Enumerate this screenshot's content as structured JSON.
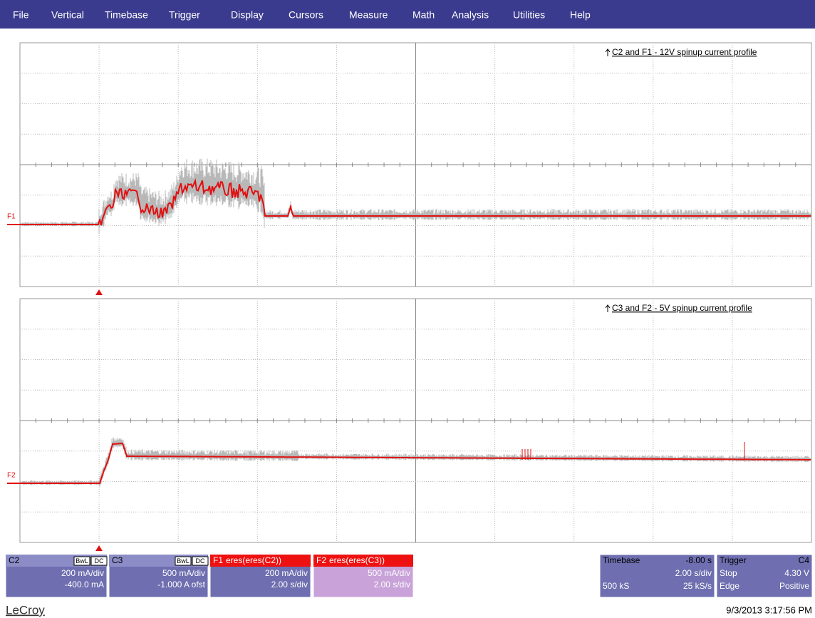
{
  "menu": [
    "File",
    "Vertical",
    "Timebase",
    "Trigger",
    "Display",
    "Cursors",
    "Measure",
    "Math",
    "Analysis",
    "Utilities",
    "Help"
  ],
  "panels": [
    {
      "title": "C2 and F1 - 12V spinup current profile",
      "trace": "F1"
    },
    {
      "title": "C3 and F2 - 5V spinup current profile",
      "trace": "F2"
    }
  ],
  "channels": [
    {
      "name": "C2",
      "badges": [
        "BwL",
        "DC"
      ],
      "lines": [
        "200 mA/div",
        "-400.0 mA"
      ]
    },
    {
      "name": "C3",
      "badges": [
        "BwL",
        "DC"
      ],
      "lines": [
        "500 mA/div",
        "-1.000 A ofst"
      ]
    },
    {
      "name": "F1",
      "function": "eres(eres(C2))",
      "lines": [
        "200 mA/div",
        "2.00 s/div"
      ]
    },
    {
      "name": "F2",
      "function": "eres(eres(C3))",
      "lines": [
        "500 mA/div",
        "2.00 s/div"
      ]
    }
  ],
  "timebase": {
    "label": "Timebase",
    "delay": "-8.00 s",
    "scale": "2.00 s/div",
    "samples": "500 kS",
    "rate": "25 kS/s"
  },
  "trigger": {
    "label": "Trigger",
    "source": "C4",
    "state": "Stop",
    "level": "4.30 V",
    "mode": "Edge",
    "slope": "Positive"
  },
  "footer": {
    "brand": "LeCroy",
    "timestamp": "9/3/2013 3:17:56 PM"
  }
}
